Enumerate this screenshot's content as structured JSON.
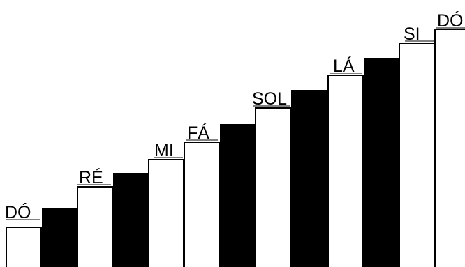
{
  "diagram": {
    "steps": [
      {
        "label": "DÓ",
        "kind": "white"
      },
      {
        "label": "",
        "kind": "black"
      },
      {
        "label": "RÉ",
        "kind": "white"
      },
      {
        "label": "",
        "kind": "black"
      },
      {
        "label": "MI",
        "kind": "white"
      },
      {
        "label": "FÁ",
        "kind": "white"
      },
      {
        "label": "",
        "kind": "black"
      },
      {
        "label": "SOL",
        "kind": "white"
      },
      {
        "label": "",
        "kind": "black"
      },
      {
        "label": "LÁ",
        "kind": "white"
      },
      {
        "label": "",
        "kind": "black"
      },
      {
        "label": "SI",
        "kind": "white"
      },
      {
        "label": "DÓ",
        "kind": "white"
      }
    ],
    "colors": {
      "white_key": "#ffffff",
      "black_key": "#000000",
      "outline": "#000000"
    }
  }
}
